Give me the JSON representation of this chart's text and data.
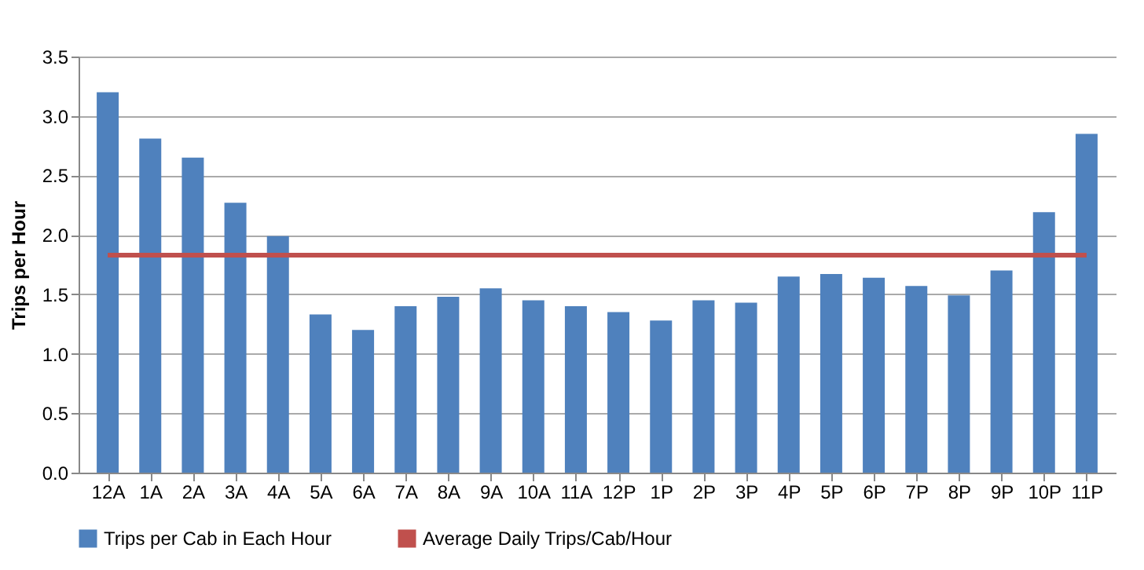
{
  "chart_data": {
    "type": "bar",
    "ylabel": "Trips per Hour",
    "categories": [
      "12A",
      "1A",
      "2A",
      "3A",
      "4A",
      "5A",
      "6A",
      "7A",
      "8A",
      "9A",
      "10A",
      "11A",
      "12P",
      "1P",
      "2P",
      "3P",
      "4P",
      "5P",
      "6P",
      "7P",
      "8P",
      "9P",
      "10P",
      "11P"
    ],
    "series": [
      {
        "name": "Trips per Cab in Each Hour",
        "color": "#4f81bd",
        "values": [
          3.2,
          2.81,
          2.65,
          2.27,
          1.99,
          1.33,
          1.2,
          1.4,
          1.48,
          1.55,
          1.45,
          1.4,
          1.35,
          1.28,
          1.45,
          1.43,
          1.65,
          1.67,
          1.64,
          1.57,
          1.49,
          1.7,
          2.19,
          2.85
        ]
      },
      {
        "name": "Average Daily Trips/Cab/Hour",
        "type": "line",
        "color": "#c0504d",
        "values": [
          1.83,
          1.83,
          1.83,
          1.83,
          1.83,
          1.83,
          1.83,
          1.83,
          1.83,
          1.83,
          1.83,
          1.83,
          1.83,
          1.83,
          1.83,
          1.83,
          1.83,
          1.83,
          1.83,
          1.83,
          1.83,
          1.83,
          1.83,
          1.83
        ]
      }
    ],
    "ylim": [
      0,
      3.5
    ],
    "yticks": [
      {
        "value": 0,
        "label": "0.0"
      },
      0.5,
      {
        "value": 1,
        "label": "1.0"
      },
      1.5,
      {
        "value": 2,
        "label": "2.0"
      },
      2.5,
      {
        "value": 3,
        "label": "3.0"
      },
      3.5
    ],
    "grid": "y",
    "legend": "bottom"
  }
}
